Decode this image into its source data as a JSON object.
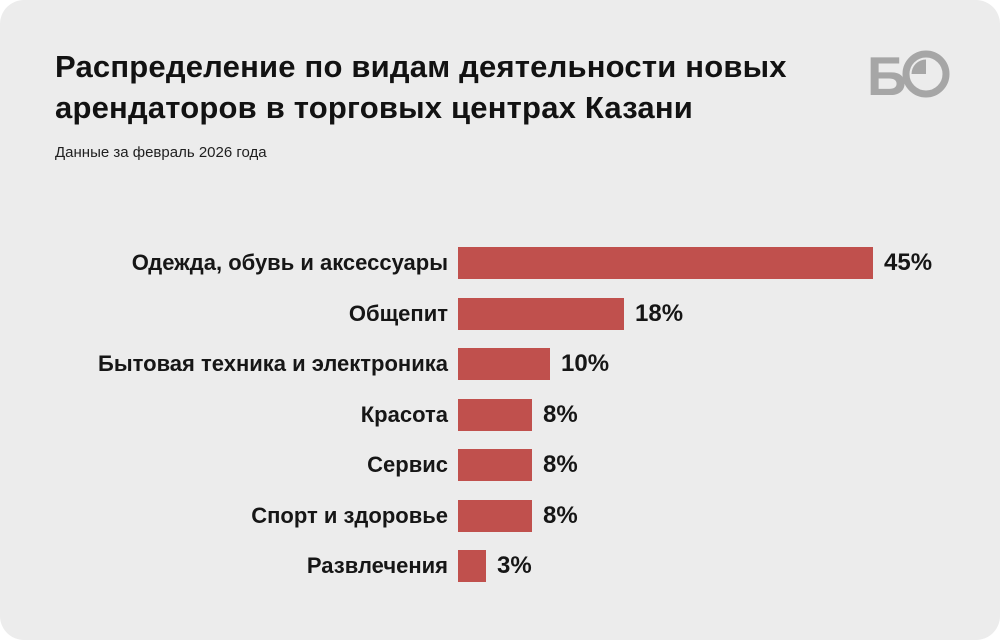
{
  "header": {
    "title": "Распределение по видам деятельности новых арендаторов в торговых центрах Казани",
    "subtitle": "Данные за февраль 2026 года",
    "logo_letter": "Б"
  },
  "colors": {
    "bar": "#c0504d",
    "card_background": "#ececec",
    "page_background": "#ffffff",
    "logo_gray": "#a6a6a6",
    "text": "#121212"
  },
  "chart_data": {
    "type": "bar",
    "orientation": "horizontal",
    "title": "Распределение по видам деятельности новых арендаторов в торговых центрах Казани",
    "subtitle": "Данные за февраль 2026 года",
    "unit": "%",
    "categories": [
      "Одежда, обувь и аксессуары",
      "Общепит",
      "Бытовая техника и электроника",
      "Красота",
      "Сервис",
      "Спорт и здоровье",
      "Развлечения"
    ],
    "values": [
      45,
      18,
      10,
      8,
      8,
      8,
      3
    ],
    "value_labels": [
      "45%",
      "18%",
      "10%",
      "8%",
      "8%",
      "8%",
      "3%"
    ],
    "xlim": [
      0,
      45
    ],
    "bar_color": "#c0504d",
    "grid": false,
    "legend": false,
    "data_labels_position": "right-of-bar"
  }
}
